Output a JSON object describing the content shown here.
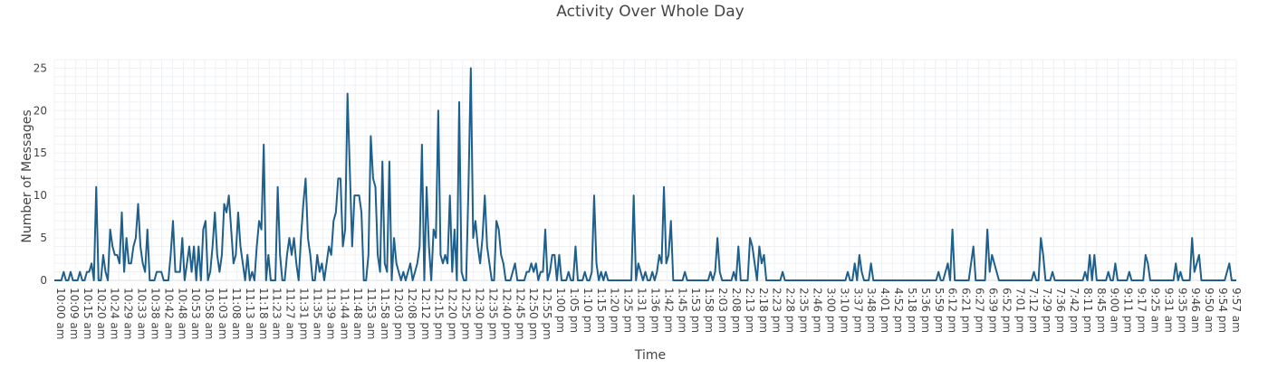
{
  "chart_data": {
    "type": "line",
    "title": "Activity Over Whole Day",
    "xlabel": "Time",
    "ylabel": "Number of Messages",
    "ylim": [
      0,
      26
    ],
    "yticks": [
      0,
      5,
      10,
      15,
      20,
      25
    ],
    "grid": true,
    "legend": "none",
    "line_color": "#1f5f8b",
    "tick_labels": [
      "10:00 am",
      "10:09 am",
      "10:15 am",
      "10:20 am",
      "10:24 am",
      "10:29 am",
      "10:33 am",
      "10:38 am",
      "10:42 am",
      "10:48 am",
      "10:53 am",
      "10:58 am",
      "11:03 am",
      "11:08 am",
      "11:13 am",
      "11:18 am",
      "11:23 am",
      "11:27 am",
      "11:31 pm",
      "11:35 am",
      "11:39 am",
      "11:44 am",
      "11:48 am",
      "11:53 am",
      "11:58 am",
      "12:03 pm",
      "12:08 pm",
      "12:12 pm",
      "12:15 pm",
      "12:20 pm",
      "12:25 pm",
      "12:30 pm",
      "12:35 pm",
      "12:40 pm",
      "12:45 pm",
      "12:50 pm",
      "12:55 pm",
      "1:00 pm",
      "1:05 pm",
      "1:10 pm",
      "1:15 pm",
      "1:20 pm",
      "1:25 pm",
      "1:31 pm",
      "1:36 pm",
      "1:42 pm",
      "1:45 pm",
      "1:53 pm",
      "1:58 pm",
      "2:03 pm",
      "2:08 pm",
      "2:13 pm",
      "2:18 pm",
      "2:23 pm",
      "2:28 pm",
      "2:35 pm",
      "2:46 pm",
      "3:00 pm",
      "3:10 pm",
      "3:37 pm",
      "3:48 pm",
      "4:01 pm",
      "4:52 pm",
      "5:18 pm",
      "5:36 pm",
      "5:59 pm",
      "6:12 pm",
      "6:21 pm",
      "6:27 pm",
      "6:39 pm",
      "6:52 pm",
      "7:01 pm",
      "7:12 pm",
      "7:29 pm",
      "7:36 pm",
      "7:42 pm",
      "8:11 pm",
      "8:45 pm",
      "9:00 am",
      "9:11 pm",
      "9:17 pm",
      "9:25 am",
      "9:31 am",
      "9:35 pm",
      "9:46 am",
      "9:50 am",
      "9:54 pm",
      "9:57 am"
    ],
    "values": [
      0,
      0,
      0,
      0,
      1,
      0,
      0,
      1,
      0,
      0,
      0,
      1,
      0,
      0,
      1,
      1,
      2,
      0,
      11,
      0,
      0,
      3,
      1,
      0,
      6,
      4,
      3,
      3,
      2,
      8,
      1,
      5,
      2,
      2,
      4,
      5,
      9,
      4,
      2,
      1,
      6,
      0,
      0,
      0,
      1,
      1,
      1,
      0,
      0,
      0,
      3,
      7,
      1,
      1,
      1,
      5,
      0,
      2,
      4,
      1,
      4,
      0,
      4,
      0,
      6,
      7,
      0,
      1,
      4,
      8,
      3,
      1,
      3,
      9,
      8,
      10,
      6,
      2,
      3,
      8,
      4,
      2,
      0,
      3,
      0,
      1,
      0,
      4,
      7,
      6,
      16,
      0,
      3,
      0,
      0,
      0,
      11,
      3,
      0,
      0,
      3,
      5,
      3,
      5,
      2,
      0,
      5,
      9,
      12,
      5,
      3,
      0,
      0,
      3,
      1,
      2,
      0,
      2,
      4,
      3,
      7,
      8,
      12,
      12,
      4,
      6,
      22,
      13,
      4,
      10,
      10,
      10,
      8,
      0,
      0,
      3,
      17,
      12,
      11,
      3,
      1,
      14,
      2,
      1,
      14,
      0,
      5,
      2,
      1,
      0,
      1,
      0,
      1,
      2,
      0,
      1,
      2,
      4,
      16,
      0,
      11,
      4,
      0,
      6,
      5,
      20,
      3,
      2,
      3,
      2,
      10,
      1,
      6,
      0,
      21,
      1,
      0,
      0,
      11,
      25,
      5,
      7,
      4,
      2,
      5,
      10,
      4,
      2,
      0,
      0,
      7,
      6,
      3,
      2,
      0,
      0,
      0,
      1,
      2,
      0,
      0,
      0,
      0,
      1,
      1,
      2,
      1,
      2,
      0,
      1,
      1,
      6,
      0,
      1,
      3,
      3,
      0,
      3,
      0,
      0,
      0,
      1,
      0,
      0,
      4,
      0,
      0,
      0,
      1,
      0,
      0,
      1,
      10,
      2,
      0,
      1,
      0,
      1,
      0,
      0,
      0,
      0,
      0,
      0,
      0,
      0,
      0,
      0,
      0,
      10,
      0,
      2,
      1,
      0,
      1,
      0,
      0,
      1,
      0,
      1,
      3,
      2,
      11,
      2,
      3,
      7,
      0,
      0,
      0,
      0,
      0,
      1,
      0,
      0,
      0,
      0,
      0,
      0,
      0,
      0,
      0,
      0,
      1,
      0,
      1,
      5,
      1,
      0,
      0,
      0,
      0,
      0,
      1,
      0,
      4,
      0,
      0,
      0,
      0,
      5,
      4,
      2,
      0,
      4,
      2,
      3,
      0,
      0,
      0,
      0,
      0,
      0,
      0,
      1,
      0,
      0,
      0,
      0,
      0,
      0,
      0,
      0,
      0,
      0,
      0,
      0,
      0,
      0,
      0,
      0,
      0,
      0,
      0,
      0,
      0,
      0,
      0,
      0,
      0,
      0,
      0,
      1,
      0,
      0,
      2,
      0,
      3,
      1,
      0,
      0,
      0,
      2,
      0,
      0,
      0,
      0,
      0,
      0,
      0,
      0,
      0,
      0,
      0,
      0,
      0,
      0,
      0,
      0,
      0,
      0,
      0,
      0,
      0,
      0,
      0,
      0,
      0,
      0,
      0,
      0,
      1,
      0,
      0,
      1,
      2,
      0,
      6,
      0,
      0,
      0,
      0,
      0,
      0,
      0,
      2,
      4,
      0,
      0,
      0,
      0,
      0,
      6,
      1,
      3,
      2,
      1,
      0,
      0,
      0,
      0,
      0,
      0,
      0,
      0,
      0,
      0,
      0,
      0,
      0,
      0,
      0,
      1,
      0,
      0,
      5,
      3,
      0,
      0,
      0,
      1,
      0,
      0,
      0,
      0,
      0,
      0,
      0,
      0,
      0,
      0,
      0,
      0,
      0,
      1,
      0,
      3,
      0,
      3,
      0,
      0,
      0,
      0,
      0,
      1,
      0,
      0,
      2,
      0,
      0,
      0,
      0,
      0,
      1,
      0,
      0,
      0,
      0,
      0,
      0,
      3,
      2,
      0,
      0,
      0,
      0,
      0,
      0,
      0,
      0,
      0,
      0,
      0,
      2,
      0,
      1,
      0,
      0,
      0,
      0,
      5,
      1,
      2,
      3,
      0,
      0,
      0,
      0,
      0,
      0,
      0,
      0,
      0,
      0,
      0,
      1,
      2,
      0,
      0,
      0
    ]
  }
}
